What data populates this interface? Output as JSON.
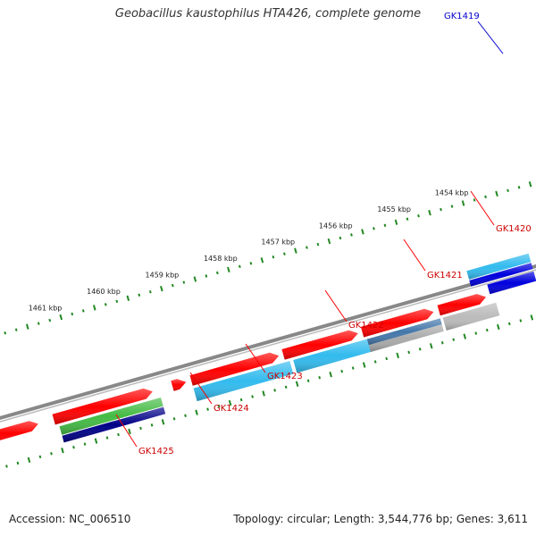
{
  "title": "Geobacillus kaustophilus HTA426, complete genome",
  "footer": {
    "accession": "Accession: NC_006510",
    "summary": "Topology: circular; Length: 3,544,776 bp; Genes: 3,611"
  },
  "ticks": [
    "1454 kbp",
    "1455 kbp",
    "1456 kbp",
    "1457 kbp",
    "1458 kbp",
    "1459 kbp",
    "1460 kbp",
    "1461 kbp"
  ],
  "genes": [
    {
      "name": "GK1419",
      "label_color": "#0000cc",
      "line_color": "#0000cc"
    },
    {
      "name": "GK1420",
      "label_color": "#cc0000",
      "line_color": "#ff0000"
    },
    {
      "name": "GK1421",
      "label_color": "#cc0000",
      "line_color": "#ff0000"
    },
    {
      "name": "GK1422",
      "label_color": "#cc0000",
      "line_color": "#ff0000"
    },
    {
      "name": "GK1423",
      "label_color": "#cc0000",
      "line_color": "#ff0000"
    },
    {
      "name": "GK1424",
      "label_color": "#cc0000",
      "line_color": "#ff0000"
    },
    {
      "name": "GK1425",
      "label_color": "#cc0000",
      "line_color": "#ff0000"
    }
  ],
  "colors": {
    "backbone": "#888888",
    "cds": "#ff0000",
    "blast_cyan": "#33bbee",
    "blast_dark_blue": "#0000dd",
    "blast_steel": "#4477aa",
    "blast_gray": "#bbbbbb",
    "blast_green": "#44bb44",
    "blast_navy": "#000088",
    "tick": "#228822"
  }
}
